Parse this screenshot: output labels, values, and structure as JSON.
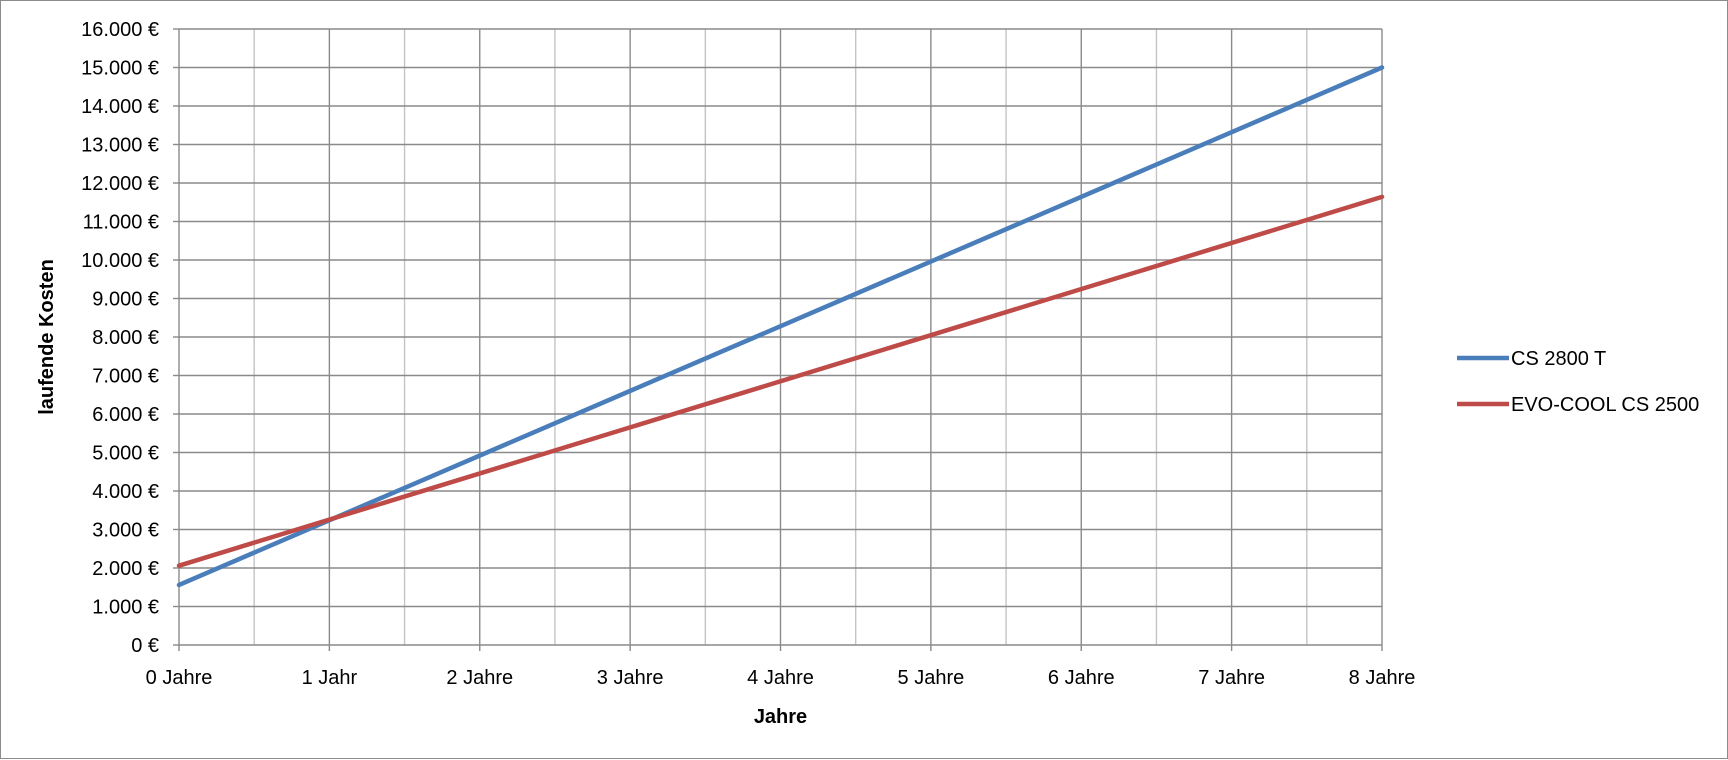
{
  "chart_data": {
    "type": "line",
    "title": "",
    "xlabel": "Jahre",
    "ylabel": "laufende Kosten",
    "x": [
      0,
      8
    ],
    "x_tick_labels": [
      "0 Jahre",
      "1 Jahr",
      "2 Jahre",
      "3 Jahre",
      "4 Jahre",
      "5 Jahre",
      "6 Jahre",
      "7 Jahre",
      "8 Jahre"
    ],
    "y_tick_labels": [
      "0 €",
      "1.000 €",
      "2.000 €",
      "3.000 €",
      "4.000 €",
      "5.000 €",
      "6.000 €",
      "7.000 €",
      "8.000 €",
      "9.000 €",
      "10.000 €",
      "11.000 €",
      "12.000 €",
      "13.000 €",
      "14.000 €",
      "15.000 €",
      "16.000 €"
    ],
    "xlim": [
      0,
      8
    ],
    "ylim": [
      0,
      16000
    ],
    "y_step": 1000,
    "x_minor_step": 0.5,
    "grid": true,
    "legend_position": "right",
    "series": [
      {
        "name": "CS 2800 T",
        "color": "#4a7ebb",
        "values": [
          1560,
          15000
        ]
      },
      {
        "name": "EVO-COOL CS 2500",
        "color": "#be4b48",
        "values": [
          2060,
          11640
        ]
      }
    ]
  }
}
